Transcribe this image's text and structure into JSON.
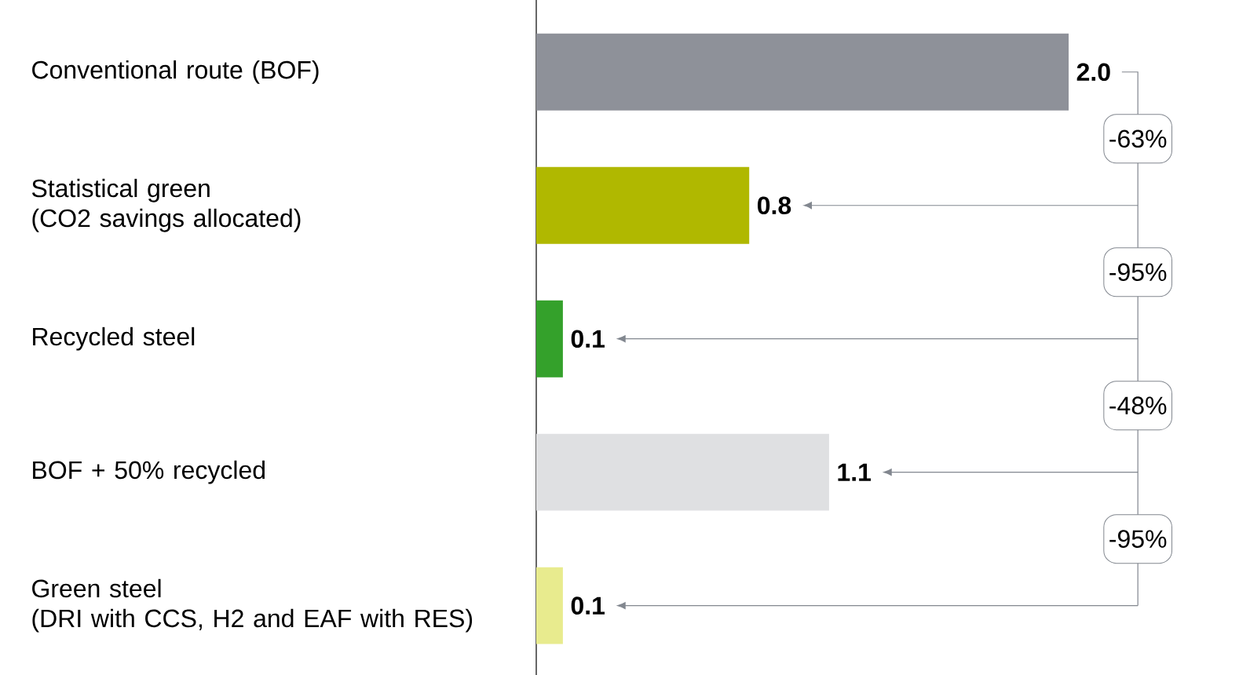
{
  "chart_data": {
    "type": "bar",
    "orientation": "horizontal",
    "categories": [
      "Conventional route (BOF)",
      "Statistical green\n(CO2 savings allocated)",
      "Recycled steel",
      "BOF + 50% recycled",
      "Green steel\n(DRI with CCS, H2 and EAF with RES)"
    ],
    "values": [
      2.0,
      0.8,
      0.1,
      1.1,
      0.1
    ],
    "colors": [
      "#8e9199",
      "#b0b800",
      "#34a12b",
      "#dfe0e2",
      "#e8eb8e"
    ],
    "value_labels": [
      "2.0",
      "0.8",
      "0.1",
      "1.1",
      "0.1"
    ],
    "annotations": [
      "-63%",
      "-95%",
      "-48%",
      "-95%"
    ]
  }
}
